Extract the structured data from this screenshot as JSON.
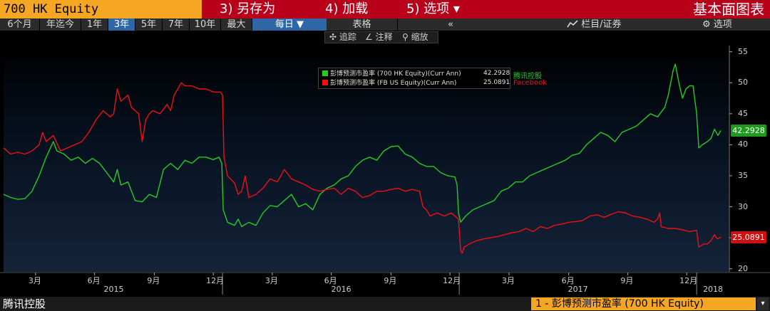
{
  "header": {
    "security": "700 HK Equity",
    "menu": [
      {
        "label": "3) 另存为"
      },
      {
        "label": "4) 加载"
      },
      {
        "label": "5) 选项 ▾"
      }
    ],
    "panel_title": "基本面图表"
  },
  "range_bar": {
    "ranges": [
      "6个月",
      "年迄今",
      "1年",
      "3年",
      "5年",
      "7年",
      "10年",
      "最大"
    ],
    "active_range": "3年",
    "frequency": "每日 ▼",
    "table_tab": "表格",
    "collapse": "«",
    "watchlist": "栏目/证券",
    "options": "选项"
  },
  "tools": {
    "track": "追踪",
    "annotate": "注释",
    "zoom": "缩放"
  },
  "legend": {
    "items": [
      {
        "label": "彭博预测市盈率 (700 HK Equity)(Curr Ann)",
        "value": "42.2928",
        "company": "腾讯控股",
        "color": "#22cc22"
      },
      {
        "label": "彭博预测市盈率 (FB US Equity)(Curr Ann)",
        "value": "25.0891",
        "company": "Facebook",
        "color": "#ee1111"
      }
    ]
  },
  "chart_data": {
    "type": "line",
    "ylim": [
      19.5,
      56
    ],
    "yticks": [
      20,
      25,
      30,
      35,
      40,
      45,
      50,
      55
    ],
    "xlim": [
      0,
      1020
    ],
    "month_ticks": [
      {
        "label": "3月",
        "t": 45
      },
      {
        "label": "6月",
        "t": 128
      },
      {
        "label": "9月",
        "t": 212
      },
      {
        "label": "12月",
        "t": 295
      },
      {
        "label": "3月",
        "t": 378
      },
      {
        "label": "6月",
        "t": 461
      },
      {
        "label": "9月",
        "t": 545
      },
      {
        "label": "12月",
        "t": 628
      },
      {
        "label": "3月",
        "t": 711
      },
      {
        "label": "6月",
        "t": 795
      },
      {
        "label": "9月",
        "t": 878
      },
      {
        "label": "12月",
        "t": 961
      }
    ],
    "year_ticks": [
      {
        "label": "2015",
        "t": 155
      },
      {
        "label": "2016",
        "t": 475
      },
      {
        "label": "2017",
        "t": 808
      },
      {
        "label": "2018",
        "t": 998
      }
    ],
    "year_dividers": [
      308,
      641,
      975
    ],
    "series": [
      {
        "name": "彭博预测市盈率 (700 HK Equity)(Curr Ann)",
        "color": "#22cc22",
        "last_value": "42.2928",
        "points": [
          [
            0,
            32
          ],
          [
            10,
            31.5
          ],
          [
            20,
            31.2
          ],
          [
            30,
            31.3
          ],
          [
            40,
            32.5
          ],
          [
            50,
            35
          ],
          [
            60,
            38
          ],
          [
            70,
            40.5
          ],
          [
            75,
            39
          ],
          [
            85,
            38.5
          ],
          [
            95,
            37.5
          ],
          [
            105,
            38
          ],
          [
            115,
            37
          ],
          [
            125,
            37.8
          ],
          [
            135,
            37
          ],
          [
            145,
            35.5
          ],
          [
            155,
            34
          ],
          [
            160,
            36
          ],
          [
            165,
            33.5
          ],
          [
            175,
            34
          ],
          [
            185,
            31
          ],
          [
            195,
            30.8
          ],
          [
            205,
            32
          ],
          [
            215,
            31.5
          ],
          [
            225,
            36
          ],
          [
            235,
            37
          ],
          [
            245,
            36
          ],
          [
            255,
            37.5
          ],
          [
            265,
            37
          ],
          [
            275,
            38
          ],
          [
            285,
            38
          ],
          [
            295,
            37.6
          ],
          [
            303,
            38
          ],
          [
            307,
            37
          ],
          [
            309,
            29.5
          ],
          [
            315,
            27.5
          ],
          [
            325,
            27
          ],
          [
            330,
            28
          ],
          [
            335,
            26.8
          ],
          [
            345,
            27.5
          ],
          [
            355,
            27
          ],
          [
            365,
            29
          ],
          [
            375,
            30.2
          ],
          [
            385,
            30
          ],
          [
            395,
            31
          ],
          [
            405,
            32
          ],
          [
            415,
            30
          ],
          [
            425,
            30.5
          ],
          [
            435,
            29.5
          ],
          [
            445,
            32
          ],
          [
            455,
            33
          ],
          [
            465,
            33.5
          ],
          [
            475,
            34.5
          ],
          [
            485,
            35
          ],
          [
            495,
            36.5
          ],
          [
            505,
            37.5
          ],
          [
            515,
            38
          ],
          [
            525,
            37.5
          ],
          [
            535,
            39
          ],
          [
            545,
            39.7
          ],
          [
            555,
            39.8
          ],
          [
            565,
            38.5
          ],
          [
            575,
            38
          ],
          [
            585,
            37
          ],
          [
            595,
            36.5
          ],
          [
            605,
            36.5
          ],
          [
            615,
            35.5
          ],
          [
            625,
            35
          ],
          [
            635,
            34.8
          ],
          [
            638,
            33.5
          ],
          [
            640,
            29
          ],
          [
            643,
            27.5
          ],
          [
            650,
            28.5
          ],
          [
            660,
            29.5
          ],
          [
            670,
            30
          ],
          [
            680,
            30.5
          ],
          [
            690,
            31
          ],
          [
            700,
            32.5
          ],
          [
            710,
            33
          ],
          [
            720,
            34
          ],
          [
            730,
            34
          ],
          [
            740,
            35
          ],
          [
            750,
            35.5
          ],
          [
            760,
            36
          ],
          [
            770,
            36.5
          ],
          [
            780,
            37
          ],
          [
            790,
            37.5
          ],
          [
            800,
            38.3
          ],
          [
            810,
            38.6
          ],
          [
            820,
            40
          ],
          [
            830,
            41
          ],
          [
            840,
            42
          ],
          [
            850,
            41.5
          ],
          [
            860,
            40.5
          ],
          [
            870,
            42
          ],
          [
            880,
            42.5
          ],
          [
            890,
            43
          ],
          [
            900,
            44
          ],
          [
            910,
            45
          ],
          [
            920,
            44.5
          ],
          [
            930,
            46
          ],
          [
            935,
            48
          ],
          [
            942,
            52
          ],
          [
            945,
            53
          ],
          [
            950,
            50
          ],
          [
            955,
            47.5
          ],
          [
            960,
            49
          ],
          [
            965,
            49.5
          ],
          [
            970,
            49.5
          ],
          [
            975,
            45
          ],
          [
            978,
            39.5
          ],
          [
            983,
            40
          ],
          [
            990,
            40.5
          ],
          [
            995,
            41
          ],
          [
            1000,
            42.5
          ],
          [
            1005,
            41.5
          ],
          [
            1009,
            42.3
          ]
        ]
      },
      {
        "name": "彭博预测市盈率 (FB US Equity)(Curr Ann)",
        "color": "#ee1111",
        "last_value": "25.0891",
        "points": [
          [
            0,
            39.5
          ],
          [
            10,
            38.5
          ],
          [
            20,
            38.8
          ],
          [
            30,
            38.5
          ],
          [
            40,
            39
          ],
          [
            50,
            40
          ],
          [
            55,
            42
          ],
          [
            60,
            40.5
          ],
          [
            70,
            41.5
          ],
          [
            80,
            39
          ],
          [
            90,
            39.5
          ],
          [
            100,
            40
          ],
          [
            110,
            40.5
          ],
          [
            120,
            42
          ],
          [
            130,
            44
          ],
          [
            140,
            45.5
          ],
          [
            150,
            44.5
          ],
          [
            155,
            45
          ],
          [
            160,
            49
          ],
          [
            165,
            47
          ],
          [
            170,
            47.5
          ],
          [
            175,
            48
          ],
          [
            180,
            46
          ],
          [
            185,
            45.5
          ],
          [
            190,
            45
          ],
          [
            195,
            40.5
          ],
          [
            200,
            44
          ],
          [
            205,
            45
          ],
          [
            210,
            45.5
          ],
          [
            220,
            45
          ],
          [
            230,
            46.5
          ],
          [
            235,
            45.5
          ],
          [
            240,
            48
          ],
          [
            245,
            49
          ],
          [
            250,
            50
          ],
          [
            255,
            49.5
          ],
          [
            265,
            49.5
          ],
          [
            275,
            49
          ],
          [
            285,
            49
          ],
          [
            295,
            48.5
          ],
          [
            305,
            48.5
          ],
          [
            308,
            48
          ],
          [
            310,
            38
          ],
          [
            315,
            35
          ],
          [
            325,
            33.8
          ],
          [
            330,
            32
          ],
          [
            335,
            32.5
          ],
          [
            340,
            35
          ],
          [
            345,
            31.5
          ],
          [
            355,
            32
          ],
          [
            365,
            33
          ],
          [
            375,
            34.5
          ],
          [
            385,
            34
          ],
          [
            395,
            36
          ],
          [
            405,
            34.5
          ],
          [
            415,
            34
          ],
          [
            425,
            33.5
          ],
          [
            435,
            32.8
          ],
          [
            445,
            32.5
          ],
          [
            455,
            32.8
          ],
          [
            465,
            33
          ],
          [
            475,
            32
          ],
          [
            485,
            33
          ],
          [
            495,
            32.5
          ],
          [
            505,
            31.5
          ],
          [
            515,
            31.8
          ],
          [
            525,
            32.5
          ],
          [
            535,
            32.5
          ],
          [
            545,
            32.8
          ],
          [
            555,
            33
          ],
          [
            565,
            32.5
          ],
          [
            575,
            32.8
          ],
          [
            585,
            32.5
          ],
          [
            590,
            30
          ],
          [
            595,
            29.5
          ],
          [
            600,
            28.5
          ],
          [
            610,
            29
          ],
          [
            620,
            28.5
          ],
          [
            630,
            29
          ],
          [
            640,
            28
          ],
          [
            643,
            23
          ],
          [
            645,
            22.5
          ],
          [
            648,
            23.5
          ],
          [
            655,
            24
          ],
          [
            665,
            24.5
          ],
          [
            675,
            24.8
          ],
          [
            685,
            25
          ],
          [
            695,
            25.2
          ],
          [
            705,
            25.5
          ],
          [
            715,
            25.8
          ],
          [
            725,
            26
          ],
          [
            735,
            26.5
          ],
          [
            745,
            26
          ],
          [
            755,
            26.8
          ],
          [
            765,
            26.5
          ],
          [
            775,
            27
          ],
          [
            785,
            27.2
          ],
          [
            795,
            27.5
          ],
          [
            805,
            27.6
          ],
          [
            815,
            27.8
          ],
          [
            825,
            28.5
          ],
          [
            835,
            28.7
          ],
          [
            845,
            28.3
          ],
          [
            855,
            28.8
          ],
          [
            865,
            29.2
          ],
          [
            875,
            29
          ],
          [
            885,
            28.5
          ],
          [
            895,
            28.3
          ],
          [
            905,
            28
          ],
          [
            915,
            27.5
          ],
          [
            920,
            28
          ],
          [
            923,
            29
          ],
          [
            925,
            26.8
          ],
          [
            935,
            26.5
          ],
          [
            945,
            26.5
          ],
          [
            955,
            26.3
          ],
          [
            965,
            26
          ],
          [
            975,
            26.2
          ],
          [
            978,
            23.5
          ],
          [
            985,
            24
          ],
          [
            990,
            24
          ],
          [
            995,
            24.5
          ],
          [
            1000,
            25.5
          ],
          [
            1004,
            24.8
          ],
          [
            1009,
            25.1
          ]
        ]
      }
    ]
  },
  "footer": {
    "company": "腾讯控股",
    "selector": "1 - 彭博预测市盈率 (700 HK Equity)",
    "drop": "▾"
  }
}
